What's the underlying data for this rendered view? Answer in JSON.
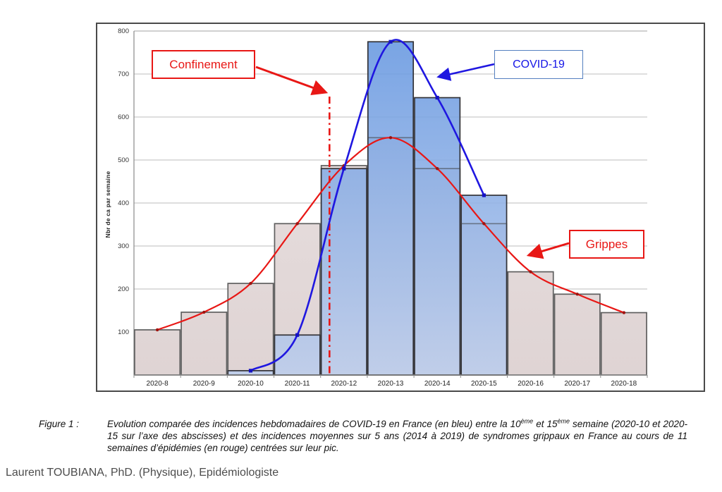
{
  "figure": {
    "caption_label": "Figure 1 :",
    "caption_segments": [
      {
        "text": "Evolution comparée des incidences hebdomadaires de COVID-19 en France (en bleu) entre la 10"
      },
      {
        "text": "ème",
        "sup": true
      },
      {
        "text": " et 15"
      },
      {
        "text": "ème",
        "sup": true
      },
      {
        "text": " semaine (2020-10 et 2020-15 sur l’axe des abscisses) et des incidences moyennes sur 5 ans (2014 à 2019) de syndromes grippaux en France au cours de 11 semaines d’épidémies (en rouge) centrées sur leur pic."
      }
    ],
    "attribution": "Laurent TOUBIANA, PhD. (Physique), Epidémiologiste"
  },
  "annotations": {
    "confinement_label": "Confinement",
    "covid_label": "COVID-19",
    "grippes_label": "Grippes"
  },
  "colors": {
    "red": "#E81715",
    "blue_line": "#1F17E0",
    "blue_marker": "#1512C4",
    "red_marker": "#9E1410",
    "covid_box_border": "#5580C0",
    "grey_bar_top": "#EAE2E2",
    "grey_bar_bottom": "#DFD4D4",
    "grey_bar_stroke": "#5f5f5f",
    "blue_bar_top": "#6496E0",
    "blue_bar_bottom": "#BCCDEC",
    "blue_bar_stroke": "#333338",
    "grid": "#bdbdbd",
    "axis": "#8a8a8a"
  },
  "chart_data": {
    "type": "bar",
    "title": "",
    "xlabel": "",
    "ylabel": "Nbr de ca  par semaine",
    "ylim": [
      0,
      800
    ],
    "yticks": [
      100,
      200,
      300,
      400,
      500,
      600,
      700,
      800
    ],
    "grid": true,
    "categories": [
      "2020-8",
      "2020-9",
      "2020-10",
      "2020-11",
      "2020-12",
      "2020-13",
      "2020-14",
      "2020-15",
      "2020-16",
      "2020-17",
      "2020-18"
    ],
    "series": [
      {
        "name": "Grippes (incidence moyenne 2014-2019)",
        "type": "bar",
        "values": [
          105,
          146,
          213,
          352,
          487,
          552,
          480,
          352,
          240,
          188,
          145
        ]
      },
      {
        "name": "COVID-19",
        "type": "bar",
        "values": [
          null,
          null,
          10,
          93,
          480,
          775,
          645,
          418,
          null,
          null,
          null
        ]
      },
      {
        "name": "Grippes (courbe)",
        "type": "line",
        "values": [
          105,
          146,
          213,
          352,
          487,
          552,
          480,
          352,
          240,
          188,
          145
        ]
      },
      {
        "name": "COVID-19 (courbe)",
        "type": "line",
        "values": [
          null,
          null,
          10,
          93,
          480,
          775,
          645,
          418,
          null,
          null,
          null
        ]
      }
    ],
    "confinement_x_index": 4.19
  }
}
